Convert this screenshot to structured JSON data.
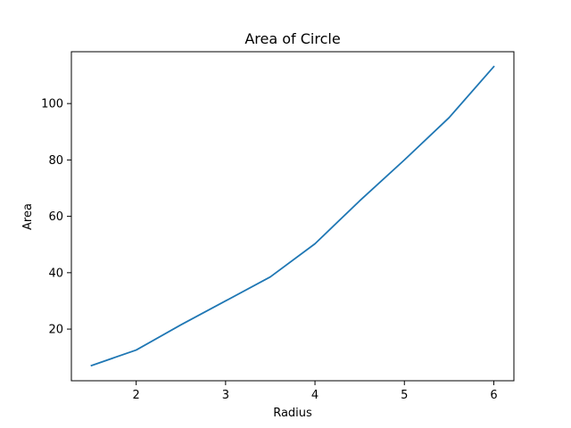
{
  "chart_data": {
    "type": "line",
    "title": "Area of Circle",
    "xlabel": "Radius",
    "ylabel": "Area",
    "xlim": [
      1.275,
      6.225
    ],
    "ylim": [
      1.68,
      118.39
    ],
    "xticks": [
      2,
      3,
      4,
      5,
      6
    ],
    "yticks": [
      20,
      40,
      60,
      80,
      100
    ],
    "grid": false,
    "series": [
      {
        "name": "Area",
        "color": "#1f77b4",
        "x": [
          1.5,
          2.0,
          2.5,
          3.0,
          3.5,
          4.0,
          4.5,
          5.0,
          5.5,
          6.0
        ],
        "y": [
          7.07,
          12.57,
          21.5,
          30.0,
          38.5,
          50.27,
          65.5,
          80.0,
          95.0,
          113.1
        ]
      }
    ]
  }
}
